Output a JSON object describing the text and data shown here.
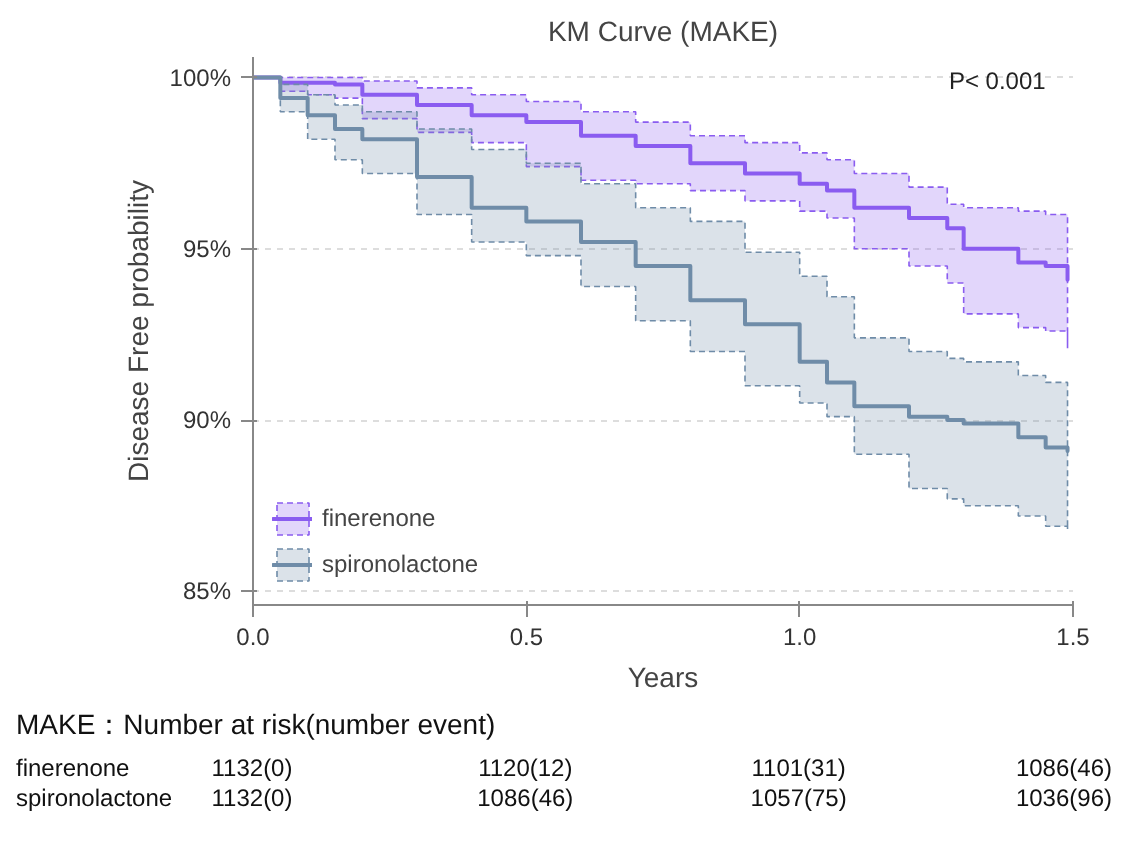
{
  "chart_data": {
    "type": "step",
    "title": "KM Curve (MAKE)",
    "xlabel": "Years",
    "ylabel": "Disease Free probability",
    "x": [
      0,
      0.05,
      0.1,
      0.15,
      0.2,
      0.3,
      0.4,
      0.5,
      0.6,
      0.7,
      0.8,
      0.9,
      1.0,
      1.05,
      1.1,
      1.2,
      1.27,
      1.3,
      1.4,
      1.45,
      1.49
    ],
    "series": [
      {
        "name": "finerenone",
        "color": "#8a5cf0",
        "values": [
          100,
          99.85,
          99.85,
          99.8,
          99.5,
          99.2,
          98.9,
          98.7,
          98.3,
          98.0,
          97.5,
          97.2,
          96.9,
          96.7,
          96.2,
          95.9,
          95.6,
          95.0,
          94.6,
          94.5,
          94.1
        ],
        "upper": [
          100,
          100,
          100,
          100,
          99.9,
          99.7,
          99.5,
          99.3,
          99.0,
          98.7,
          98.3,
          98.1,
          97.8,
          97.6,
          97.2,
          96.8,
          96.3,
          96.2,
          96.1,
          96.0,
          95.9
        ],
        "lower": [
          100,
          99.6,
          99.5,
          99.4,
          98.8,
          98.4,
          98.1,
          97.4,
          97.0,
          96.9,
          96.7,
          96.4,
          96.1,
          95.9,
          95.0,
          94.5,
          94.0,
          93.1,
          92.7,
          92.6,
          92.1
        ]
      },
      {
        "name": "spironolactone",
        "color": "#6f8ca8",
        "values": [
          100,
          99.4,
          98.9,
          98.5,
          98.2,
          97.1,
          96.2,
          95.8,
          95.2,
          94.5,
          93.5,
          92.8,
          91.7,
          91.1,
          90.4,
          90.1,
          90.0,
          89.9,
          89.5,
          89.2,
          89.1
        ],
        "upper": [
          100,
          99.8,
          99.5,
          99.2,
          99.0,
          98.5,
          97.9,
          97.5,
          96.9,
          96.2,
          95.8,
          94.9,
          94.2,
          93.6,
          92.4,
          92.0,
          91.8,
          91.7,
          91.3,
          91.1,
          91.0
        ],
        "lower": [
          100,
          99.0,
          98.2,
          97.6,
          97.2,
          96.0,
          95.2,
          94.8,
          93.9,
          92.9,
          92.0,
          91.0,
          90.5,
          90.1,
          89.0,
          88.0,
          87.7,
          87.5,
          87.2,
          86.9,
          86.8
        ]
      }
    ],
    "xlim": [
      0,
      1.5
    ],
    "ylim": [
      84.6,
      100.6
    ],
    "xticks": [
      {
        "value": 0,
        "label": "0.0"
      },
      {
        "value": 0.5,
        "label": "0.5"
      },
      {
        "value": 1.0,
        "label": "1.0"
      },
      {
        "value": 1.5,
        "label": "1.5"
      }
    ],
    "yticks": [
      {
        "value": 85,
        "label": "85%"
      },
      {
        "value": 90,
        "label": "90%"
      },
      {
        "value": 95,
        "label": "95%"
      },
      {
        "value": 100,
        "label": "100%"
      }
    ],
    "grid": "y",
    "legend": "bottom left",
    "annotations": [
      "P< 0.001",
      "MAKE：Number at risk(number event)",
      "finerenone",
      "1132(0)",
      "1120(12)",
      "1101(31)",
      "1086(46)",
      "spironolactone",
      "1132(0)",
      "1086(46)",
      "1057(75)",
      "1036(96)"
    ]
  }
}
